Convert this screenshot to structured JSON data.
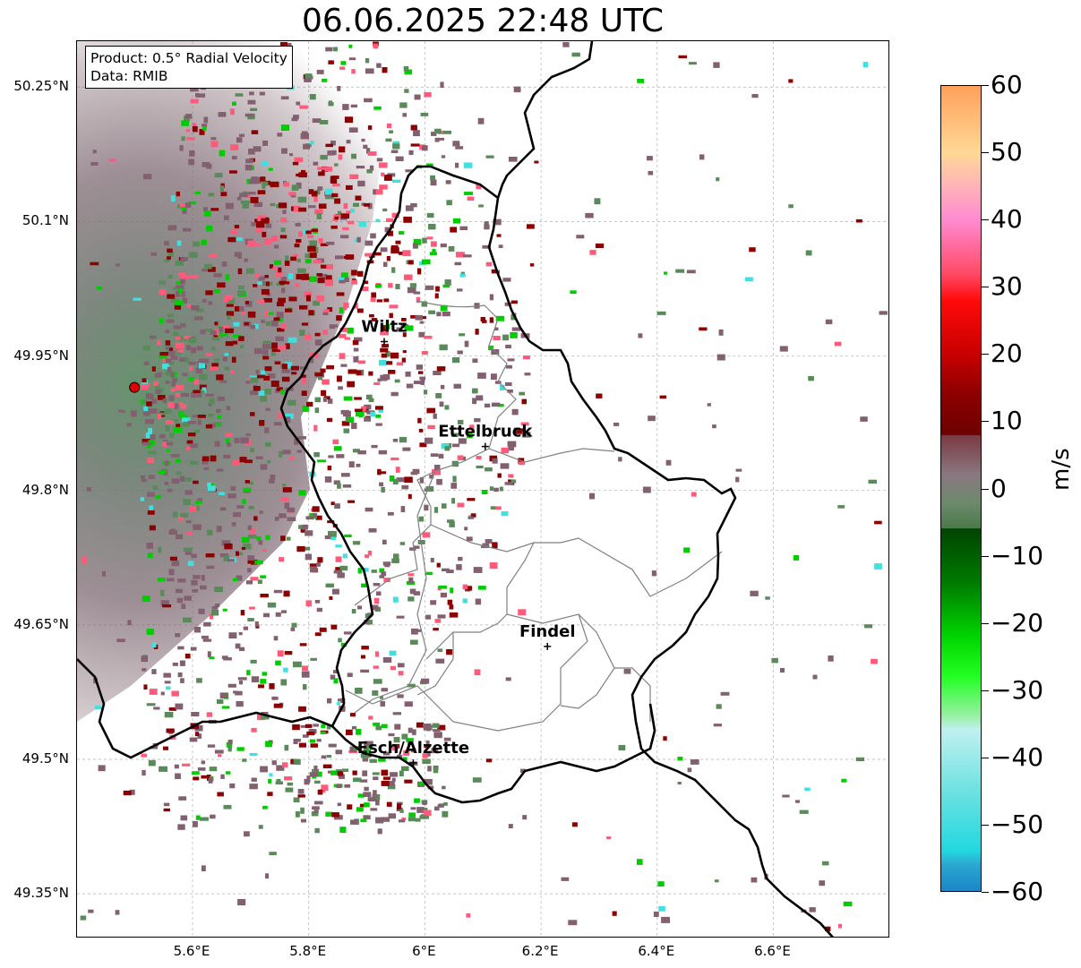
{
  "title": "06.06.2025 22:48 UTC",
  "info": {
    "product": "Product: 0.5° Radial Velocity",
    "data": "Data: RMIB"
  },
  "map": {
    "lon_range": [
      5.42,
      6.8
    ],
    "lat_range": [
      49.3,
      50.3
    ],
    "lat_ticks": [
      {
        "value": 50.25,
        "label": "50.25°N"
      },
      {
        "value": 50.1,
        "label": "50.1°N"
      },
      {
        "value": 49.95,
        "label": "49.95°N"
      },
      {
        "value": 49.8,
        "label": "49.8°N"
      },
      {
        "value": 49.65,
        "label": "49.65°N"
      },
      {
        "value": 49.5,
        "label": "49.5°N"
      },
      {
        "value": 49.35,
        "label": "49.35°N"
      }
    ],
    "lon_ticks": [
      {
        "value": 5.6,
        "label": "5.6°E"
      },
      {
        "value": 5.8,
        "label": "5.8°E"
      },
      {
        "value": 6.0,
        "label": "6°E"
      },
      {
        "value": 6.2,
        "label": "6.2°E"
      },
      {
        "value": 6.4,
        "label": "6.4°E"
      },
      {
        "value": 6.6,
        "label": "6.6°E"
      }
    ],
    "grid": true,
    "radar_site": {
      "lon": 5.5,
      "lat": 49.915
    },
    "cities": [
      {
        "name": "Wiltz",
        "lon": 5.93,
        "lat": 49.966
      },
      {
        "name": "Ettelbruck",
        "lon": 6.104,
        "lat": 49.849
      },
      {
        "name": "Findel",
        "lon": 6.211,
        "lat": 49.626
      },
      {
        "name": "Esch/Alzette",
        "lon": 5.98,
        "lat": 49.496
      }
    ]
  },
  "colorbar": {
    "label": "m/s",
    "min": -60,
    "max": 60,
    "ticks": [
      {
        "value": 60,
        "label": "60"
      },
      {
        "value": 50,
        "label": "50"
      },
      {
        "value": 40,
        "label": "40"
      },
      {
        "value": 30,
        "label": "30"
      },
      {
        "value": 20,
        "label": "20"
      },
      {
        "value": 10,
        "label": "10"
      },
      {
        "value": 0,
        "label": "0"
      },
      {
        "value": -10,
        "label": "−10"
      },
      {
        "value": -20,
        "label": "−20"
      },
      {
        "value": -30,
        "label": "−30"
      },
      {
        "value": -40,
        "label": "−40"
      },
      {
        "value": -50,
        "label": "−50"
      },
      {
        "value": -60,
        "label": "−60"
      }
    ],
    "stops": [
      {
        "value": 60,
        "color": "#ffa15c"
      },
      {
        "value": 50,
        "color": "#ffd896"
      },
      {
        "value": 45,
        "color": "#ffb3b8"
      },
      {
        "value": 40,
        "color": "#ff8ad0"
      },
      {
        "value": 32,
        "color": "#ff4a66"
      },
      {
        "value": 28,
        "color": "#ff0a0a"
      },
      {
        "value": 20,
        "color": "#c80000"
      },
      {
        "value": 14,
        "color": "#8c0000"
      },
      {
        "value": 8,
        "color": "#6e0000"
      },
      {
        "value": 7.9,
        "color": "#7a3a44"
      },
      {
        "value": 2,
        "color": "#8a7880"
      },
      {
        "value": -2,
        "color": "#6d8a6d"
      },
      {
        "value": -5.9,
        "color": "#4c7a4c"
      },
      {
        "value": -6,
        "color": "#004400"
      },
      {
        "value": -14,
        "color": "#007a00"
      },
      {
        "value": -22,
        "color": "#00d400"
      },
      {
        "value": -28,
        "color": "#22ff22"
      },
      {
        "value": -34,
        "color": "#9af0a6"
      },
      {
        "value": -36,
        "color": "#c0f0f0"
      },
      {
        "value": -46,
        "color": "#66e0e0"
      },
      {
        "value": -54,
        "color": "#22d8e0"
      },
      {
        "value": -56,
        "color": "#2aa8d0"
      },
      {
        "value": -60,
        "color": "#1c86c8"
      }
    ]
  },
  "colors": {
    "echo_muted_red": "#836070",
    "echo_muted_green": "#5a8a5a",
    "echo_red": "#8b0000",
    "echo_pink": "#ff5a7a",
    "echo_green": "#00cc00",
    "echo_cyan": "#40e0e0",
    "border_national": "#000000",
    "border_cantonal": "#808080",
    "grid": "#b0b0b0",
    "radar_marker": "#e00000"
  }
}
